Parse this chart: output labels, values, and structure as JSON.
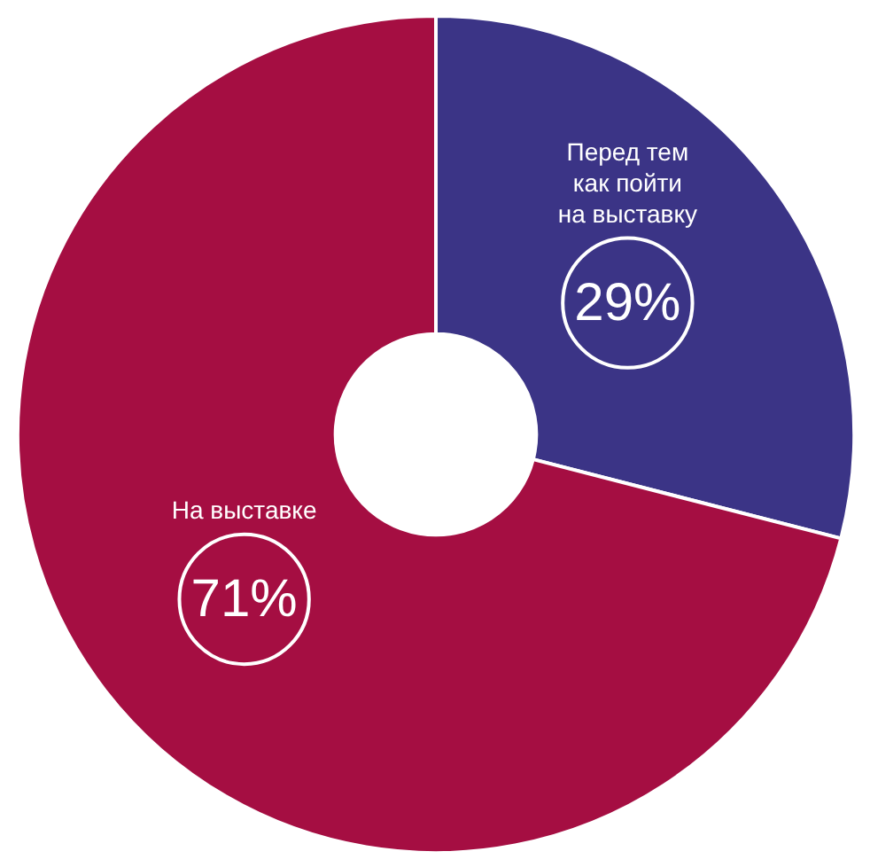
{
  "chart_data": {
    "type": "donut",
    "categories": [
      "Перед тем как пойти на выставку",
      "На выставке"
    ],
    "values": [
      29,
      71
    ],
    "value_labels": [
      "29%",
      "71%"
    ],
    "colors": [
      "#3b3486",
      "#a50e42"
    ]
  }
}
